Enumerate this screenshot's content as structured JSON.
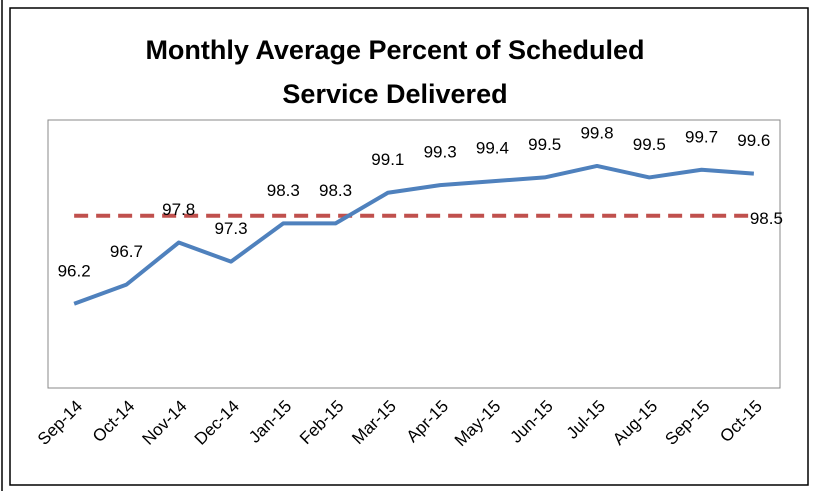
{
  "chart_data": {
    "type": "line",
    "title": "Monthly Average Percent of Scheduled Service Delivered",
    "categories": [
      "Sep-14",
      "Oct-14",
      "Nov-14",
      "Dec-14",
      "Jan-15",
      "Feb-15",
      "Mar-15",
      "Apr-15",
      "May-15",
      "Jun-15",
      "Jul-15",
      "Aug-15",
      "Sep-15",
      "Oct-15"
    ],
    "series": [
      {
        "values": [
          96.2,
          96.7,
          97.8,
          97.3,
          98.3,
          98.3,
          99.1,
          99.3,
          99.4,
          99.5,
          99.8,
          99.5,
          99.7,
          99.6
        ],
        "color": "#4f81bd"
      }
    ],
    "target": {
      "value": 98.5,
      "color": "#c0504d"
    },
    "ylim": [
      94,
      101
    ]
  }
}
